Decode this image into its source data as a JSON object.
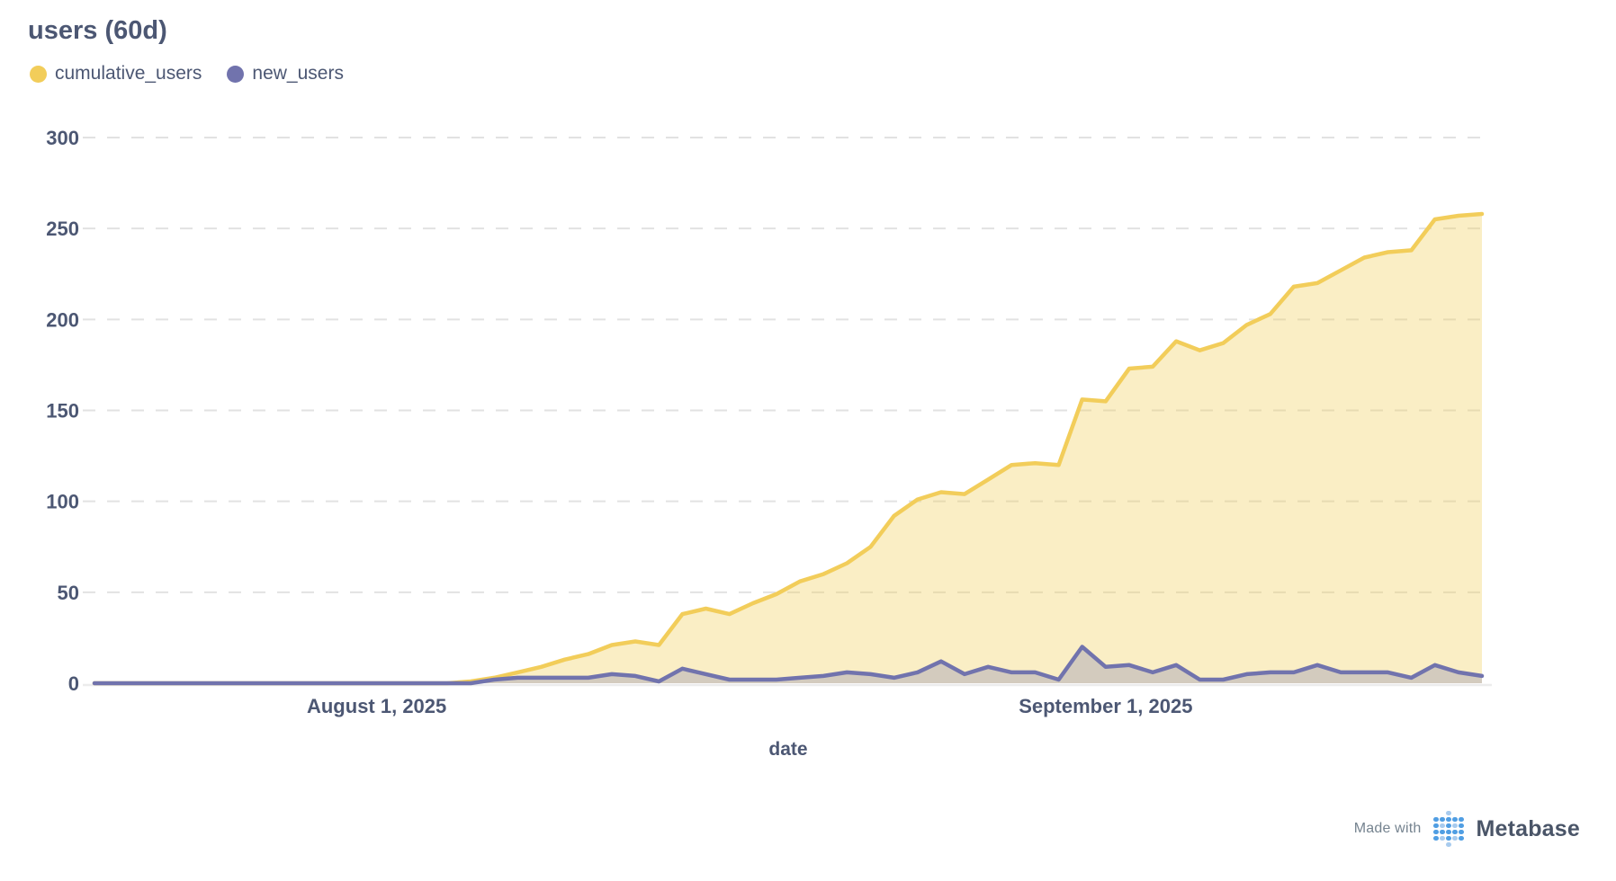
{
  "header": {
    "title": "users (60d)"
  },
  "legend": [
    {
      "label": "cumulative_users",
      "color": "#F2CD5A"
    },
    {
      "label": "new_users",
      "color": "#7173AD"
    }
  ],
  "chart_data": {
    "type": "area",
    "title": "users (60d)",
    "xlabel": "date",
    "ylabel": "",
    "ylim": [
      0,
      300
    ],
    "y_ticks": [
      0,
      50,
      100,
      150,
      200,
      250,
      300
    ],
    "grid": "horizontal-dashed",
    "legend_position": "top-left",
    "x_tick_labels": [
      {
        "label": "August 1, 2025",
        "index": 12
      },
      {
        "label": "September 1, 2025",
        "index": 43
      }
    ],
    "x": [
      "2025-07-20",
      "2025-07-21",
      "2025-07-22",
      "2025-07-23",
      "2025-07-24",
      "2025-07-25",
      "2025-07-26",
      "2025-07-27",
      "2025-07-28",
      "2025-07-29",
      "2025-07-30",
      "2025-07-31",
      "2025-08-01",
      "2025-08-02",
      "2025-08-03",
      "2025-08-04",
      "2025-08-05",
      "2025-08-06",
      "2025-08-07",
      "2025-08-08",
      "2025-08-09",
      "2025-08-10",
      "2025-08-11",
      "2025-08-12",
      "2025-08-13",
      "2025-08-14",
      "2025-08-15",
      "2025-08-16",
      "2025-08-17",
      "2025-08-18",
      "2025-08-19",
      "2025-08-20",
      "2025-08-21",
      "2025-08-22",
      "2025-08-23",
      "2025-08-24",
      "2025-08-25",
      "2025-08-26",
      "2025-08-27",
      "2025-08-28",
      "2025-08-29",
      "2025-08-30",
      "2025-08-31",
      "2025-09-01",
      "2025-09-02",
      "2025-09-03",
      "2025-09-04",
      "2025-09-05",
      "2025-09-06",
      "2025-09-07",
      "2025-09-08",
      "2025-09-09",
      "2025-09-10",
      "2025-09-11",
      "2025-09-12",
      "2025-09-13",
      "2025-09-14",
      "2025-09-15",
      "2025-09-16",
      "2025-09-17"
    ],
    "series": [
      {
        "name": "cumulative_users",
        "color": "#F2CD5A",
        "fill": "rgba(242,205,90,0.35)",
        "values": [
          0,
          0,
          0,
          0,
          0,
          0,
          0,
          0,
          0,
          0,
          0,
          0,
          0,
          0,
          0,
          0,
          1,
          3,
          6,
          9,
          13,
          16,
          21,
          23,
          21,
          38,
          41,
          38,
          44,
          49,
          56,
          60,
          66,
          75,
          92,
          101,
          105,
          104,
          112,
          120,
          121,
          120,
          156,
          155,
          173,
          174,
          188,
          183,
          187,
          197,
          203,
          218,
          220,
          227,
          234,
          237,
          238,
          255,
          257,
          258
        ]
      },
      {
        "name": "new_users",
        "color": "#7173AD",
        "fill": "rgba(113,115,173,0.28)",
        "values": [
          0,
          0,
          0,
          0,
          0,
          0,
          0,
          0,
          0,
          0,
          0,
          0,
          0,
          0,
          0,
          0,
          0,
          2,
          3,
          3,
          3,
          3,
          5,
          4,
          1,
          8,
          5,
          2,
          2,
          2,
          3,
          4,
          6,
          5,
          3,
          6,
          12,
          5,
          9,
          6,
          6,
          2,
          20,
          9,
          10,
          6,
          10,
          2,
          2,
          5,
          6,
          6,
          10,
          6,
          6,
          6,
          3,
          10,
          6,
          4
        ]
      }
    ]
  },
  "footer": {
    "made_with": "Made with",
    "brand": "Metabase",
    "logo": {
      "dark": "#509EE3",
      "light": "#A8CBEE",
      "pattern": [
        [
          0,
          0,
          1,
          0,
          0
        ],
        [
          2,
          2,
          2,
          2,
          2
        ],
        [
          2,
          1,
          2,
          1,
          2
        ],
        [
          2,
          2,
          2,
          2,
          2
        ],
        [
          2,
          1,
          2,
          1,
          2
        ],
        [
          0,
          0,
          1,
          0,
          0
        ]
      ]
    }
  },
  "colors": {
    "text": "#4C5773",
    "gridline": "#E2E2E2",
    "baseline": "#ECECEC"
  }
}
